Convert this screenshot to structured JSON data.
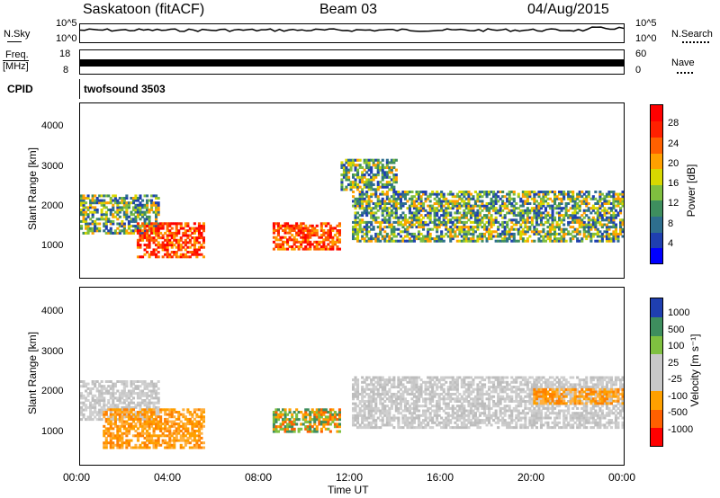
{
  "header": {
    "station": "Saskatoon (fitACF)",
    "beam": "Beam 03",
    "date": "04/Aug/2015"
  },
  "top_panels": {
    "nsky_label": "N.Sky",
    "nsky_ticks": [
      "10^5",
      "10^0"
    ],
    "nsearch_label": "N.Search",
    "nsearch_ticks": [
      "10^5",
      "10^0"
    ],
    "freq_label": "Freq.",
    "freq_unit": "[MHz]",
    "freq_ticks": [
      "18",
      "8"
    ],
    "nave_label": "Nave",
    "nave_ticks": [
      "60",
      "0"
    ],
    "cpid_label": "CPID",
    "cpid_value": "twofsound 3503"
  },
  "colors": {
    "power_scale": [
      "#0000ff",
      "#1f3fb0",
      "#2e6e8e",
      "#3e8e5e",
      "#7fbf3f",
      "#d8d800",
      "#ffa000",
      "#ff6000",
      "#ff2000",
      "#ff0000"
    ],
    "velocity_scale": [
      "#ff0000",
      "#ff6000",
      "#ffa000",
      "#c8c8c8",
      "#c8c8c8",
      "#7fc040",
      "#3e8e5e",
      "#1f3fb0"
    ]
  },
  "chart_data": [
    {
      "type": "heatmap",
      "title": "Power",
      "ylabel": "Slant Range [km]",
      "xlabel": "",
      "x_ticks": [
        "00:00",
        "04:00",
        "08:00",
        "12:00",
        "16:00",
        "20:00",
        "00:00"
      ],
      "y_ticks": [
        "1000",
        "2000",
        "3000",
        "4000"
      ],
      "ylim": [
        200,
        4600
      ],
      "xlim_hours": [
        0,
        24
      ],
      "colorbar_label": "Power [dB]",
      "colorbar_ticks": [
        "4",
        "8",
        "12",
        "16",
        "20",
        "24",
        "28"
      ],
      "echo_regions": [
        {
          "t0": 0.0,
          "t1": 3.5,
          "r0": 1300,
          "r1": 2300,
          "level": "medium"
        },
        {
          "t0": 2.5,
          "t1": 5.5,
          "r0": 700,
          "r1": 1600,
          "level": "strong"
        },
        {
          "t0": 8.5,
          "t1": 11.5,
          "r0": 900,
          "r1": 1600,
          "level": "strong"
        },
        {
          "t0": 12.0,
          "t1": 24.0,
          "r0": 1100,
          "r1": 2400,
          "level": "medium"
        },
        {
          "t0": 11.5,
          "t1": 14.0,
          "r0": 2400,
          "r1": 3200,
          "level": "medium"
        }
      ]
    },
    {
      "type": "heatmap",
      "title": "Velocity",
      "ylabel": "Slant Range [km]",
      "xlabel": "Time UT",
      "x_ticks": [
        "00:00",
        "04:00",
        "08:00",
        "12:00",
        "16:00",
        "20:00",
        "00:00"
      ],
      "y_ticks": [
        "1000",
        "2000",
        "3000",
        "4000"
      ],
      "ylim": [
        200,
        4600
      ],
      "xlim_hours": [
        0,
        24
      ],
      "colorbar_label": "Velocity [m s⁻¹]",
      "colorbar_ticks": [
        "1000",
        "500",
        "100",
        "25",
        "-25",
        "-100",
        "-500",
        "-1000"
      ],
      "echo_regions": [
        {
          "t0": 0.0,
          "t1": 3.5,
          "r0": 1300,
          "r1": 2300,
          "level": "ground"
        },
        {
          "t0": 1.0,
          "t1": 5.5,
          "r0": 600,
          "r1": 1600,
          "level": "away"
        },
        {
          "t0": 8.5,
          "t1": 11.5,
          "r0": 1000,
          "r1": 1600,
          "level": "toward"
        },
        {
          "t0": 12.0,
          "t1": 24.0,
          "r0": 1100,
          "r1": 2400,
          "level": "ground"
        },
        {
          "t0": 20.0,
          "t1": 24.0,
          "r0": 1700,
          "r1": 2100,
          "level": "away"
        }
      ]
    }
  ]
}
